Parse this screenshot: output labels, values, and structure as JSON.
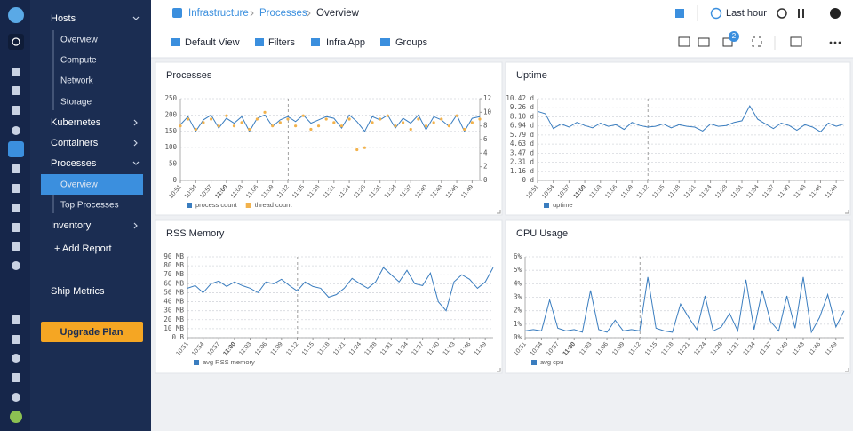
{
  "sidebar": {
    "items": [
      "Hosts",
      "Kubernetes",
      "Containers",
      "Processes",
      "Inventory"
    ],
    "hosts_children": [
      "Overview",
      "Compute",
      "Network",
      "Storage"
    ],
    "processes_children": [
      "Overview",
      "Top Processes"
    ],
    "add_report": "+ Add Report",
    "ship_metrics": "Ship Metrics",
    "upgrade": "Upgrade Plan"
  },
  "header": {
    "breadcrumb": [
      "Infrastructure",
      "Processes",
      "Overview"
    ],
    "time_range": "Last hour"
  },
  "toolbar": {
    "buttons": [
      "Default View",
      "Filters",
      "Infra App",
      "Groups"
    ],
    "badge": "2"
  },
  "chart_data": [
    {
      "type": "line",
      "title": "Processes",
      "categories": [
        "10:51",
        null,
        "10:54",
        null,
        "10:57",
        null,
        "11:00",
        null,
        "11:03",
        null,
        "11:06",
        null,
        "11:09",
        null,
        "11:12",
        null,
        "11:15",
        null,
        "11:18",
        null,
        "11:21",
        null,
        "11:24",
        null,
        "11:28",
        null,
        "11:31",
        null,
        "11:34",
        null,
        "11:37",
        null,
        "11:40",
        null,
        "11:43",
        null,
        "11:46",
        null,
        "11:49",
        null
      ],
      "ylim": [
        0,
        250
      ],
      "yticks": [
        0,
        50,
        100,
        150,
        200,
        250
      ],
      "y2lim": [
        0,
        12
      ],
      "y2ticks": [
        0,
        2,
        4,
        6,
        8,
        10,
        12
      ],
      "grid": true,
      "series": [
        {
          "name": "process count",
          "color": "#3a7dbf",
          "mode": "line",
          "values": [
            170,
            195,
            150,
            185,
            200,
            160,
            190,
            175,
            195,
            150,
            190,
            200,
            165,
            185,
            195,
            180,
            200,
            175,
            185,
            195,
            190,
            160,
            200,
            180,
            150,
            195,
            185,
            200,
            160,
            190,
            175,
            200,
            155,
            195,
            185,
            165,
            200,
            150,
            190,
            195
          ]
        },
        {
          "name": "thread count",
          "color": "#f2b24c",
          "mode": "markers",
          "axis": "y2",
          "values": [
            8,
            9,
            7.5,
            8.5,
            9,
            8,
            9.5,
            8,
            8.5,
            7.5,
            9,
            10,
            8,
            8.5,
            9,
            8,
            9.5,
            7.5,
            8,
            9,
            8.5,
            8,
            9,
            4.5,
            4.8,
            8.5,
            9,
            9.5,
            8,
            8.5,
            7.5,
            9,
            8,
            8.5,
            9,
            8,
            9.5,
            7.5,
            8.5,
            9
          ]
        }
      ]
    },
    {
      "type": "line",
      "title": "Uptime",
      "categories": [
        "10:51",
        null,
        "10:54",
        null,
        "10:57",
        null,
        "11:00",
        null,
        "11:03",
        null,
        "11:06",
        null,
        "11:09",
        null,
        "11:12",
        null,
        "11:15",
        null,
        "11:18",
        null,
        "11:21",
        null,
        "11:24",
        null,
        "11:28",
        null,
        "11:31",
        null,
        "11:34",
        null,
        "11:37",
        null,
        "11:40",
        null,
        "11:43",
        null,
        "11:46",
        null,
        "11:49",
        null
      ],
      "ylim": [
        0,
        10.42
      ],
      "yticks": [
        {
          "value": 0,
          "label": "0 d"
        },
        {
          "value": 1.16,
          "label": "1.16 d"
        },
        {
          "value": 2.31,
          "label": "2.31 d"
        },
        {
          "value": 3.47,
          "label": "3.47 d"
        },
        {
          "value": 4.63,
          "label": "4.63 d"
        },
        {
          "value": 5.79,
          "label": "5.79 d"
        },
        {
          "value": 6.94,
          "label": "6.94 d"
        },
        {
          "value": 8.1,
          "label": "8.10 d"
        },
        {
          "value": 9.26,
          "label": "9.26 d"
        },
        {
          "value": 10.42,
          "label": "10.42 d"
        }
      ],
      "grid": true,
      "series": [
        {
          "name": "uptime",
          "color": "#3a7dbf",
          "mode": "line",
          "values": [
            8.8,
            8.5,
            6.6,
            7.2,
            6.8,
            7.4,
            7.0,
            6.7,
            7.3,
            6.9,
            7.1,
            6.5,
            7.4,
            7.0,
            6.8,
            6.9,
            7.2,
            6.7,
            7.1,
            6.9,
            6.8,
            6.3,
            7.2,
            6.9,
            7.0,
            7.4,
            7.6,
            9.5,
            7.8,
            7.2,
            6.6,
            7.3,
            7.0,
            6.4,
            7.1,
            6.8,
            6.2,
            7.3,
            6.9,
            7.2
          ]
        }
      ]
    },
    {
      "type": "line",
      "title": "RSS Memory",
      "categories": [
        "10:51",
        null,
        "10:54",
        null,
        "10:57",
        null,
        "11:00",
        null,
        "11:03",
        null,
        "11:06",
        null,
        "11:09",
        null,
        "11:12",
        null,
        "11:15",
        null,
        "11:18",
        null,
        "11:21",
        null,
        "11:24",
        null,
        "11:28",
        null,
        "11:31",
        null,
        "11:34",
        null,
        "11:37",
        null,
        "11:40",
        null,
        "11:43",
        null,
        "11:46",
        null,
        "11:49",
        null
      ],
      "ylim": [
        0,
        90
      ],
      "yticks": [
        {
          "value": 0,
          "label": "0 B"
        },
        {
          "value": 10,
          "label": "10 MB"
        },
        {
          "value": 20,
          "label": "20 MB"
        },
        {
          "value": 30,
          "label": "30 MB"
        },
        {
          "value": 40,
          "label": "40 MB"
        },
        {
          "value": 50,
          "label": "50 MB"
        },
        {
          "value": 60,
          "label": "60 MB"
        },
        {
          "value": 70,
          "label": "70 MB"
        },
        {
          "value": 80,
          "label": "80 MB"
        },
        {
          "value": 90,
          "label": "90 MB"
        }
      ],
      "grid": true,
      "series": [
        {
          "name": "avg RSS memory",
          "color": "#3a7dbf",
          "mode": "line",
          "values": [
            55,
            58,
            50,
            60,
            63,
            57,
            62,
            58,
            55,
            50,
            62,
            60,
            65,
            58,
            52,
            62,
            57,
            55,
            45,
            48,
            55,
            66,
            60,
            55,
            62,
            78,
            70,
            62,
            75,
            60,
            58,
            72,
            40,
            30,
            62,
            70,
            65,
            55,
            62,
            78
          ]
        }
      ]
    },
    {
      "type": "line",
      "title": "CPU Usage",
      "categories": [
        "10:51",
        null,
        "10:54",
        null,
        "10:57",
        null,
        "11:00",
        null,
        "11:03",
        null,
        "11:06",
        null,
        "11:09",
        null,
        "11:12",
        null,
        "11:15",
        null,
        "11:18",
        null,
        "11:21",
        null,
        "11:24",
        null,
        "11:28",
        null,
        "11:31",
        null,
        "11:34",
        null,
        "11:37",
        null,
        "11:40",
        null,
        "11:43",
        null,
        "11:46",
        null,
        "11:49",
        null
      ],
      "ylim": [
        0,
        6
      ],
      "yticks": [
        {
          "value": 0,
          "label": "0%"
        },
        {
          "value": 1,
          "label": "1%"
        },
        {
          "value": 2,
          "label": "2%"
        },
        {
          "value": 3,
          "label": "3%"
        },
        {
          "value": 4,
          "label": "4%"
        },
        {
          "value": 5,
          "label": "5%"
        },
        {
          "value": 6,
          "label": "6%"
        }
      ],
      "grid": true,
      "series": [
        {
          "name": "avg cpu",
          "color": "#3a7dbf",
          "mode": "line",
          "values": [
            0.5,
            0.6,
            0.5,
            2.8,
            0.7,
            0.5,
            0.6,
            0.4,
            3.5,
            0.6,
            0.4,
            1.3,
            0.5,
            0.6,
            0.5,
            4.5,
            0.7,
            0.5,
            0.4,
            2.5,
            1.5,
            0.6,
            3.1,
            0.5,
            0.8,
            1.8,
            0.5,
            4.3,
            0.6,
            3.5,
            1.2,
            0.5,
            3.1,
            0.7,
            4.5,
            0.4,
            1.5,
            3.2,
            0.8,
            2.0
          ]
        }
      ]
    }
  ]
}
